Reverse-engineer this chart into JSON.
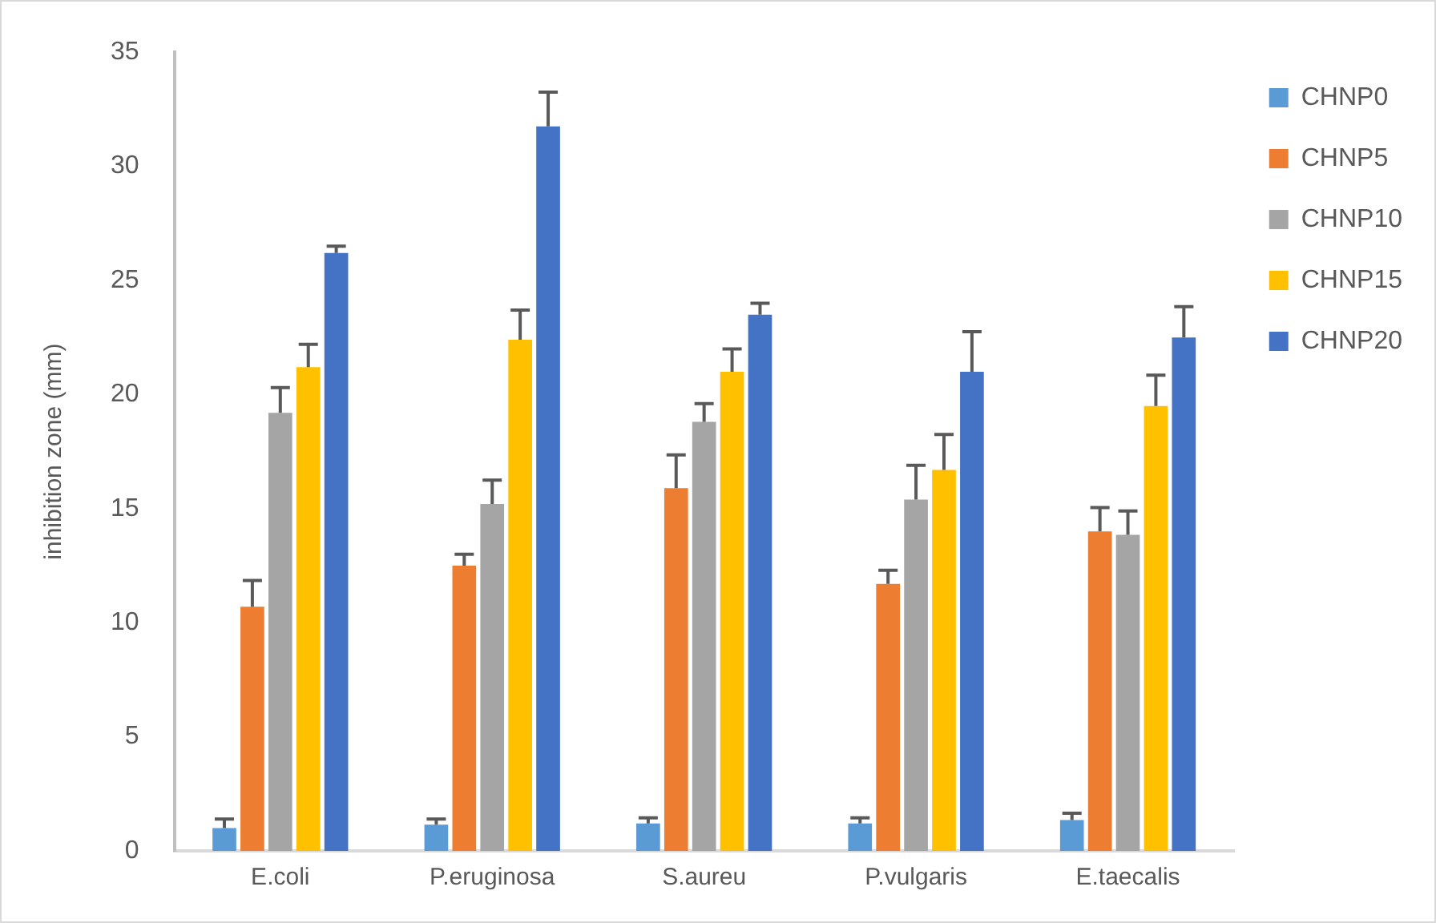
{
  "chart_data": {
    "type": "bar",
    "ylabel": "inhibition zone (mm)",
    "categories": [
      "E.coli",
      "P.eruginosa",
      "S.aureu",
      "P.vulgaris",
      "E.taecalis"
    ],
    "series": [
      {
        "name": "CHNP0",
        "color": "#5b9bd5",
        "values": [
          1.0,
          1.15,
          1.2,
          1.2,
          1.35
        ],
        "errors": [
          [
            1.0,
            1.4
          ],
          [
            1.15,
            1.4
          ],
          [
            1.2,
            1.45
          ],
          [
            1.2,
            1.45
          ],
          [
            1.35,
            1.65
          ]
        ]
      },
      {
        "name": "CHNP5",
        "color": "#ed7d31",
        "values": [
          10.7,
          12.5,
          15.9,
          11.7,
          14.0
        ],
        "errors": [
          [
            10.7,
            11.85
          ],
          [
            12.5,
            13.0
          ],
          [
            15.9,
            17.35
          ],
          [
            11.7,
            12.3
          ],
          [
            14.0,
            15.05
          ]
        ]
      },
      {
        "name": "CHNP10",
        "color": "#a5a5a5",
        "values": [
          19.2,
          15.2,
          18.8,
          15.4,
          13.85
        ],
        "errors": [
          [
            19.2,
            20.3
          ],
          [
            15.2,
            16.25
          ],
          [
            18.8,
            19.6
          ],
          [
            15.4,
            16.9
          ],
          [
            13.85,
            14.9
          ]
        ]
      },
      {
        "name": "CHNP15",
        "color": "#ffc000",
        "values": [
          21.2,
          22.4,
          21.0,
          16.7,
          19.5
        ],
        "errors": [
          [
            21.2,
            22.2
          ],
          [
            22.4,
            23.7
          ],
          [
            21.0,
            22.0
          ],
          [
            16.7,
            18.25
          ],
          [
            19.5,
            20.85
          ]
        ]
      },
      {
        "name": "CHNP20",
        "color": "#4472c4",
        "values": [
          26.2,
          31.75,
          23.5,
          21.0,
          22.5
        ],
        "errors": [
          [
            26.2,
            26.5
          ],
          [
            31.75,
            33.25
          ],
          [
            23.5,
            24.0
          ],
          [
            21.0,
            22.75
          ],
          [
            22.5,
            23.85
          ]
        ]
      }
    ],
    "ylim": [
      0,
      35
    ],
    "yticks": [
      0,
      5,
      10,
      15,
      20,
      25,
      30,
      35
    ],
    "grid": false,
    "legend": "right"
  }
}
